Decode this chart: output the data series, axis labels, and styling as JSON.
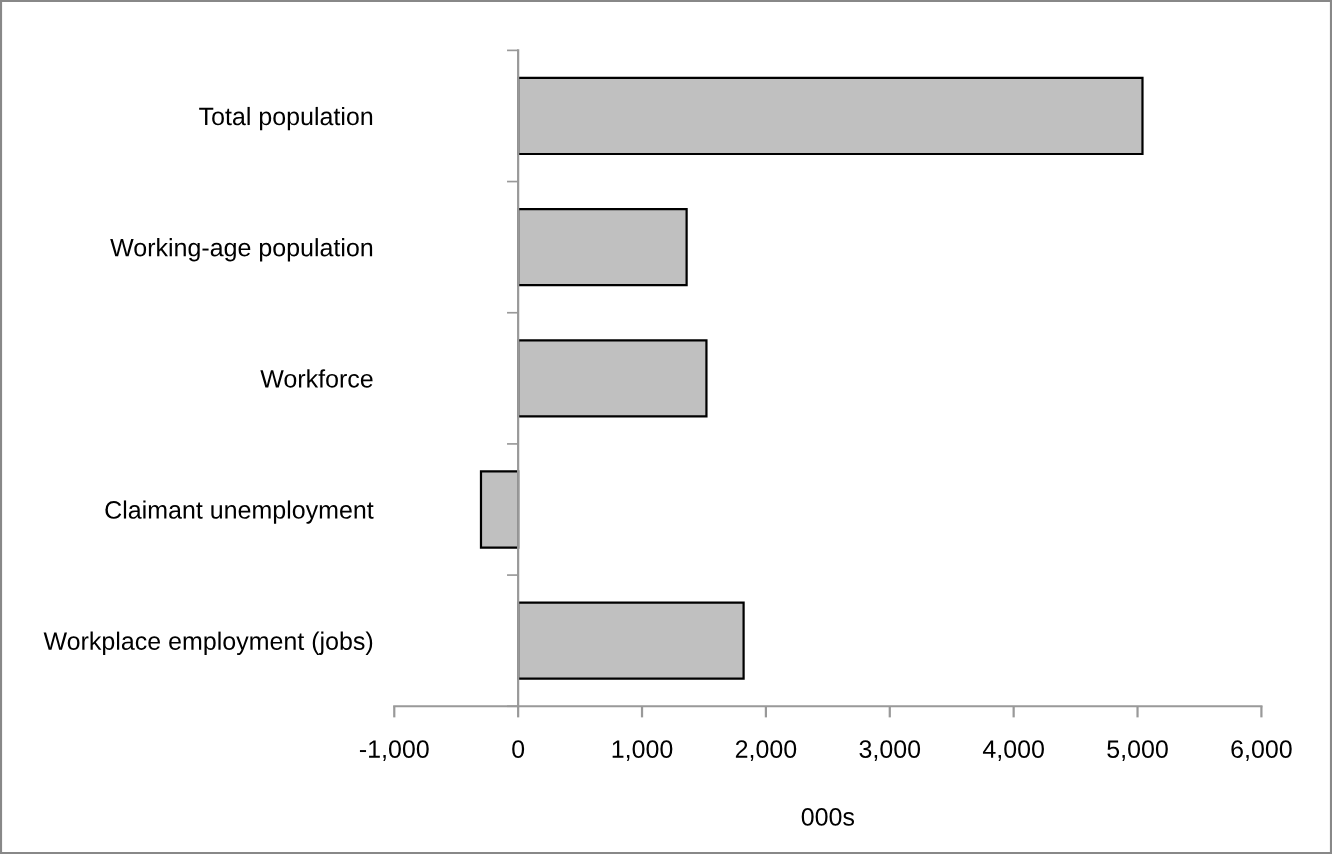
{
  "chart_data": {
    "type": "bar",
    "orientation": "horizontal",
    "xlabel": "000s",
    "categories": [
      "Total population",
      "Working-age population",
      "Workforce",
      "Claimant unemployment",
      "Workplace employment (jobs)"
    ],
    "values": [
      5040,
      1360,
      1520,
      -300,
      1820
    ],
    "color": "#c0c0c0",
    "xlim": [
      -1000,
      6000
    ],
    "xticks": [
      {
        "value": -1000,
        "label": "-1,000"
      },
      0,
      {
        "value": 1000,
        "label": "1,000"
      },
      {
        "value": 2000,
        "label": "2,000"
      },
      {
        "value": 3000,
        "label": "3,000"
      },
      {
        "value": 4000,
        "label": "4,000"
      },
      {
        "value": 5000,
        "label": "5,000"
      },
      {
        "value": 6000,
        "label": "6,000"
      }
    ],
    "legend": false
  }
}
